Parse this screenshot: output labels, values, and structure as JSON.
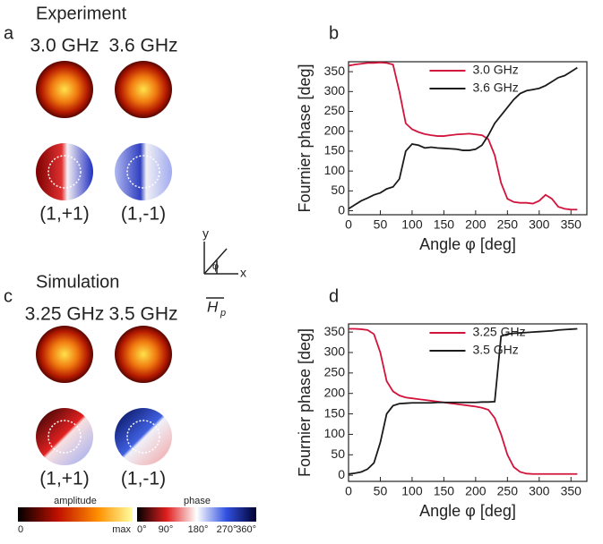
{
  "figure": {
    "panels": [
      "a",
      "b",
      "c",
      "d"
    ],
    "experiment": {
      "title": "Experiment",
      "freqs": [
        "3.0 GHz",
        "3.6 GHz"
      ],
      "modes": [
        "(1,+1)",
        "(1,-1)"
      ]
    },
    "simulation": {
      "title": "Simulation",
      "freqs": [
        "3.25 GHz",
        "3.5 GHz"
      ],
      "modes": [
        "(1,+1)",
        "(1,-1)"
      ]
    },
    "axes_icon": {
      "y": "y",
      "x": "x",
      "angle": "φ",
      "field": "H",
      "field_sub": "p"
    },
    "colorbars": {
      "amplitude": {
        "title": "amplitude",
        "min": "0",
        "max": "max"
      },
      "phase": {
        "title": "phase",
        "ticks": [
          "0°",
          "90°",
          "180°",
          "270°",
          "360°"
        ]
      }
    }
  },
  "chart_data": [
    {
      "type": "line",
      "x_label": "Angle φ [deg]",
      "y_label": "Fournier phase [deg]",
      "legend": "upper-center",
      "x": [
        0,
        10,
        20,
        30,
        40,
        50,
        60,
        70,
        80,
        90,
        100,
        110,
        120,
        130,
        140,
        150,
        160,
        170,
        180,
        190,
        200,
        210,
        220,
        230,
        240,
        250,
        260,
        270,
        280,
        290,
        300,
        310,
        320,
        330,
        340,
        350,
        360
      ],
      "series": [
        {
          "name": "3.0 GHz",
          "color": "#d2143c",
          "values": [
            365,
            368,
            370,
            372,
            372,
            373,
            372,
            368,
            300,
            220,
            205,
            198,
            193,
            190,
            188,
            188,
            190,
            192,
            193,
            194,
            192,
            190,
            180,
            140,
            70,
            30,
            22,
            20,
            20,
            18,
            25,
            40,
            30,
            10,
            5,
            3,
            3
          ]
        },
        {
          "name": "3.6 GHz",
          "color": "#1a1a1a",
          "values": [
            5,
            15,
            25,
            32,
            40,
            45,
            55,
            60,
            80,
            150,
            168,
            165,
            158,
            160,
            158,
            157,
            156,
            155,
            152,
            152,
            155,
            165,
            190,
            220,
            240,
            260,
            280,
            295,
            302,
            305,
            308,
            315,
            325,
            335,
            340,
            350,
            360
          ]
        }
      ],
      "xlim": [
        0,
        375
      ],
      "ylim": [
        -10,
        375
      ],
      "xticks": [
        0,
        50,
        100,
        150,
        200,
        250,
        300,
        350
      ],
      "yticks": [
        0,
        50,
        100,
        150,
        200,
        250,
        300,
        350
      ]
    },
    {
      "type": "line",
      "x_label": "Angle φ [deg]",
      "y_label": "Fournier phase [deg]",
      "legend": "upper-center",
      "x": [
        0,
        10,
        20,
        30,
        40,
        50,
        60,
        70,
        80,
        90,
        100,
        110,
        120,
        130,
        140,
        150,
        160,
        170,
        180,
        190,
        200,
        210,
        220,
        230,
        240,
        250,
        260,
        270,
        280,
        290,
        300,
        310,
        320,
        330,
        340,
        350,
        360
      ],
      "series": [
        {
          "name": "3.25 GHz",
          "color": "#d2143c",
          "values": [
            358,
            358,
            357,
            355,
            345,
            300,
            230,
            205,
            195,
            190,
            188,
            186,
            184,
            182,
            180,
            178,
            176,
            174,
            172,
            170,
            168,
            165,
            160,
            140,
            100,
            50,
            20,
            8,
            4,
            3,
            3,
            3,
            3,
            3,
            3,
            3,
            3
          ]
        },
        {
          "name": "3.5 GHz",
          "color": "#1a1a1a",
          "values": [
            3,
            5,
            8,
            15,
            30,
            80,
            150,
            170,
            175,
            176,
            177,
            177,
            177,
            177,
            178,
            178,
            178,
            178,
            178,
            178,
            178,
            179,
            179,
            180,
            340,
            345,
            347,
            348,
            349,
            350,
            351,
            352,
            353,
            355,
            356,
            357,
            358
          ]
        }
      ],
      "xlim": [
        0,
        375
      ],
      "ylim": [
        -15,
        370
      ],
      "xticks": [
        0,
        50,
        100,
        150,
        200,
        250,
        300,
        350
      ],
      "yticks": [
        0,
        50,
        100,
        150,
        200,
        250,
        300,
        350
      ]
    }
  ]
}
